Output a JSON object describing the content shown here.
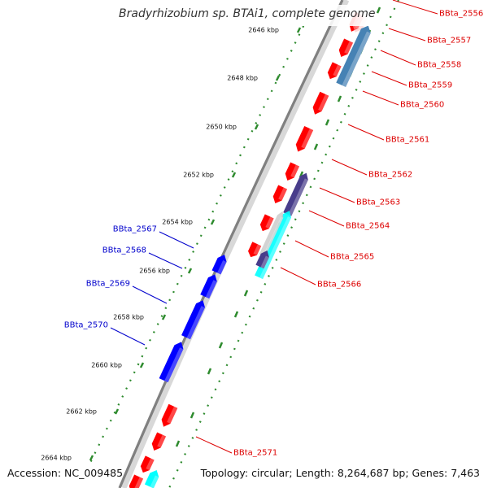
{
  "title": "Bradyrhizobium sp. BTAi1, complete genome",
  "footer": {
    "accession": "Accession: NC_009485",
    "topology": "Topology: circular; Length: 8,264,687 bp; Genes: 7,463"
  },
  "colors": {
    "forward_cds": "#ff0000",
    "reverse_cds": "#0000ff",
    "highlight_steelblue": "#4682b4",
    "highlight_purple": "#483d8b",
    "highlight_cyan": "#00ffff",
    "backbone": "#808080",
    "tick_mark": "#2e8b2e",
    "forward_label": "#dd0000",
    "reverse_label": "#0000cc"
  },
  "kbp_ticks": [
    "2646 kbp",
    "2648 kbp",
    "2650 kbp",
    "2652 kbp",
    "2654 kbp",
    "2656 kbp",
    "2658 kbp",
    "2660 kbp",
    "2662 kbp",
    "2664 kbp"
  ],
  "forward_labels": [
    "BBta_2556",
    "BBta_2557",
    "BBta_2558",
    "BBta_2559",
    "BBta_2560",
    "BBta_2561",
    "BBta_2562",
    "BBta_2563",
    "BBta_2564",
    "BBta_2565",
    "BBta_2566",
    "BBta_2571"
  ],
  "reverse_labels": [
    "BBta_2567",
    "BBta_2568",
    "BBta_2569",
    "BBta_2570"
  ]
}
